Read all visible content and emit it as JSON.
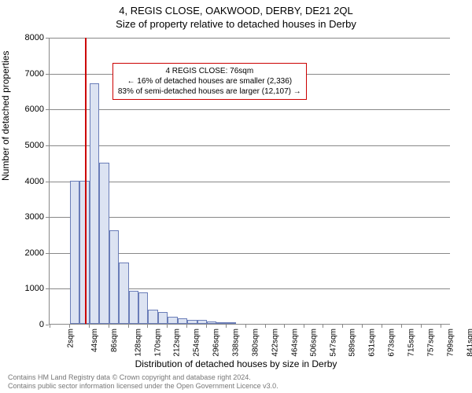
{
  "title_line1": "4, REGIS CLOSE, OAKWOOD, DERBY, DE21 2QL",
  "title_line2": "Size of property relative to detached houses in Derby",
  "ylabel": "Number of detached properties",
  "xlabel": "Distribution of detached houses by size in Derby",
  "chart": {
    "type": "histogram",
    "background_color": "#ffffff",
    "grid_color": "#888888",
    "ylim": [
      0,
      8000
    ],
    "ytick_step": 1000,
    "yticks": [
      0,
      1000,
      2000,
      3000,
      4000,
      5000,
      6000,
      7000,
      8000
    ],
    "xlim": [
      0,
      862
    ],
    "xticks": [
      {
        "pos": 2,
        "label": "2sqm"
      },
      {
        "pos": 44,
        "label": "44sqm"
      },
      {
        "pos": 86,
        "label": "86sqm"
      },
      {
        "pos": 128,
        "label": "128sqm"
      },
      {
        "pos": 170,
        "label": "170sqm"
      },
      {
        "pos": 212,
        "label": "212sqm"
      },
      {
        "pos": 254,
        "label": "254sqm"
      },
      {
        "pos": 296,
        "label": "296sqm"
      },
      {
        "pos": 338,
        "label": "338sqm"
      },
      {
        "pos": 380,
        "label": "380sqm"
      },
      {
        "pos": 422,
        "label": "422sqm"
      },
      {
        "pos": 464,
        "label": "464sqm"
      },
      {
        "pos": 506,
        "label": "506sqm"
      },
      {
        "pos": 547,
        "label": "547sqm"
      },
      {
        "pos": 589,
        "label": "589sqm"
      },
      {
        "pos": 631,
        "label": "631sqm"
      },
      {
        "pos": 673,
        "label": "673sqm"
      },
      {
        "pos": 715,
        "label": "715sqm"
      },
      {
        "pos": 757,
        "label": "757sqm"
      },
      {
        "pos": 799,
        "label": "799sqm"
      },
      {
        "pos": 841,
        "label": "841sqm"
      }
    ],
    "bar_fill": "#dce3f2",
    "bar_stroke": "#6a7db8",
    "bar_width_sqm": 21,
    "bars": [
      {
        "x": 44,
        "value": 3980
      },
      {
        "x": 65,
        "value": 4000
      },
      {
        "x": 86,
        "value": 6700
      },
      {
        "x": 107,
        "value": 4500
      },
      {
        "x": 128,
        "value": 2600
      },
      {
        "x": 149,
        "value": 1700
      },
      {
        "x": 170,
        "value": 930
      },
      {
        "x": 191,
        "value": 870
      },
      {
        "x": 212,
        "value": 400
      },
      {
        "x": 233,
        "value": 320
      },
      {
        "x": 254,
        "value": 200
      },
      {
        "x": 275,
        "value": 150
      },
      {
        "x": 296,
        "value": 110
      },
      {
        "x": 317,
        "value": 100
      },
      {
        "x": 338,
        "value": 70
      },
      {
        "x": 359,
        "value": 50
      },
      {
        "x": 380,
        "value": 40
      }
    ],
    "marker_line": {
      "x": 76,
      "color": "#cc0000",
      "width": 2
    },
    "annotation": {
      "line1": "4 REGIS CLOSE: 76sqm",
      "line2": "← 16% of detached houses are smaller (2,336)",
      "line3": "83% of semi-detached houses are larger (12,107) →",
      "border_color": "#cc0000",
      "text_color": "#000000",
      "bg_color": "#ffffff",
      "pos_x_sqm": 135,
      "pos_y_val": 7300
    }
  },
  "footer_line1": "Contains HM Land Registry data © Crown copyright and database right 2024.",
  "footer_line2": "Contains public sector information licensed under the Open Government Licence v3.0."
}
